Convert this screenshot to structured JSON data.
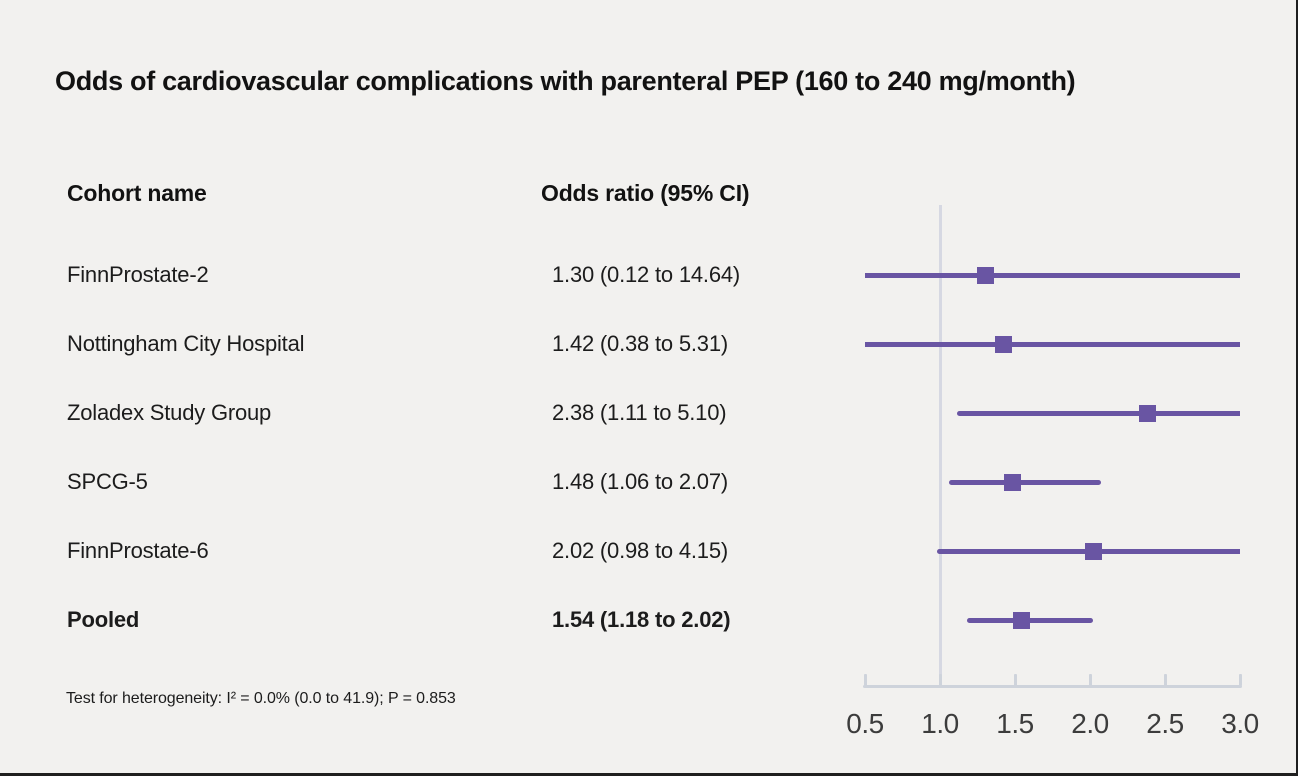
{
  "title": "Odds of cardiovascular complications with parenteral PEP (160 to 240 mg/month)",
  "table": {
    "col1_header": "Cohort name",
    "col2_header": "Odds ratio (95% CI)"
  },
  "footnote": "Test for heterogeneity: I² = 0.0% (0.0 to 41.9); P = 0.853",
  "colors": {
    "marker": "#6955A3",
    "reference_line": "#d6d8e2",
    "axis": "#ced3db",
    "background": "#f2f1ef"
  },
  "chart_data": {
    "type": "forest",
    "title": "Odds of cardiovascular complications with parenteral PEP (160 to 240 mg/month)",
    "xlabel": "Odds ratio",
    "xlim": [
      0.5,
      3.0
    ],
    "x_ticks": [
      "0.5",
      "1.0",
      "1.5",
      "2.0",
      "2.5",
      "3.0"
    ],
    "reference_line": 1.0,
    "scale": "linear",
    "legend": "none",
    "grid": "off",
    "rows": [
      {
        "cohort": "FinnProstate-2",
        "label": "1.30 (0.12 to 14.64)",
        "estimate": 1.3,
        "ci_low": 0.12,
        "ci_high": 14.64,
        "pooled": false
      },
      {
        "cohort": "Nottingham City Hospital",
        "label": "1.42 (0.38 to 5.31)",
        "estimate": 1.42,
        "ci_low": 0.38,
        "ci_high": 5.31,
        "pooled": false
      },
      {
        "cohort": "Zoladex Study Group",
        "label": "2.38 (1.11 to 5.10)",
        "estimate": 2.38,
        "ci_low": 1.11,
        "ci_high": 5.1,
        "pooled": false
      },
      {
        "cohort": "SPCG-5",
        "label": "1.48 (1.06 to 2.07)",
        "estimate": 1.48,
        "ci_low": 1.06,
        "ci_high": 2.07,
        "pooled": false
      },
      {
        "cohort": "FinnProstate-6",
        "label": "2.02 (0.98 to 4.15)",
        "estimate": 2.02,
        "ci_low": 0.98,
        "ci_high": 4.15,
        "pooled": false
      },
      {
        "cohort": "Pooled",
        "label": "1.54 (1.18 to 2.02)",
        "estimate": 1.54,
        "ci_low": 1.18,
        "ci_high": 2.02,
        "pooled": true
      }
    ],
    "heterogeneity": "Test for heterogeneity: I² = 0.0% (0.0 to 41.9); P = 0.853"
  }
}
